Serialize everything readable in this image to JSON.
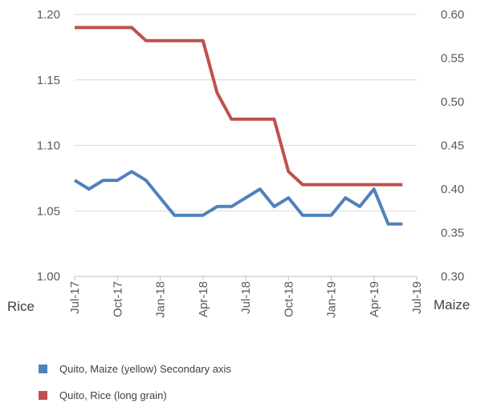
{
  "chart_data": {
    "type": "line",
    "x": [
      "Jul-17",
      "Aug-17",
      "Sep-17",
      "Oct-17",
      "Nov-17",
      "Dec-17",
      "Jan-18",
      "Feb-18",
      "Mar-18",
      "Apr-18",
      "May-18",
      "Jun-18",
      "Jul-18",
      "Aug-18",
      "Sep-18",
      "Oct-18",
      "Nov-18",
      "Dec-18",
      "Jan-19",
      "Feb-19",
      "Mar-19",
      "Apr-19",
      "May-19",
      "Jun-19"
    ],
    "x_tick_labels": [
      "Jul-17",
      "Oct-17",
      "Jan-18",
      "Apr-18",
      "Jul-18",
      "Oct-18",
      "Jan-19",
      "Apr-19",
      "Jul-19"
    ],
    "xlim": [
      "Jul-17",
      "Jul-19"
    ],
    "ylabel": "Rice",
    "y2label": "Maize",
    "ylim": [
      1.0,
      1.2
    ],
    "y_ticks": [
      "1.00",
      "1.05",
      "1.10",
      "1.15",
      "1.20"
    ],
    "y2lim": [
      0.3,
      0.6
    ],
    "y2_ticks": [
      "0.30",
      "0.35",
      "0.40",
      "0.45",
      "0.50",
      "0.55",
      "0.60"
    ],
    "grid": true,
    "legend_position": "bottom",
    "series": [
      {
        "name": "Quito, Maize (yellow) Secondary axis",
        "axis": "secondary",
        "color": "#4f81bd",
        "values": [
          0.41,
          0.4,
          0.41,
          0.41,
          0.42,
          0.41,
          0.39,
          0.37,
          0.37,
          0.37,
          0.38,
          0.38,
          0.39,
          0.4,
          0.38,
          0.39,
          0.37,
          0.37,
          0.37,
          0.39,
          0.38,
          0.4,
          0.36,
          0.36
        ]
      },
      {
        "name": "Quito, Rice (long grain)",
        "axis": "primary",
        "color": "#c0504d",
        "values": [
          1.19,
          1.19,
          1.19,
          1.19,
          1.19,
          1.18,
          1.18,
          1.18,
          1.18,
          1.18,
          1.14,
          1.12,
          1.12,
          1.12,
          1.12,
          1.08,
          1.07,
          1.07,
          1.07,
          1.07,
          1.07,
          1.07,
          1.07,
          1.07
        ]
      }
    ]
  }
}
